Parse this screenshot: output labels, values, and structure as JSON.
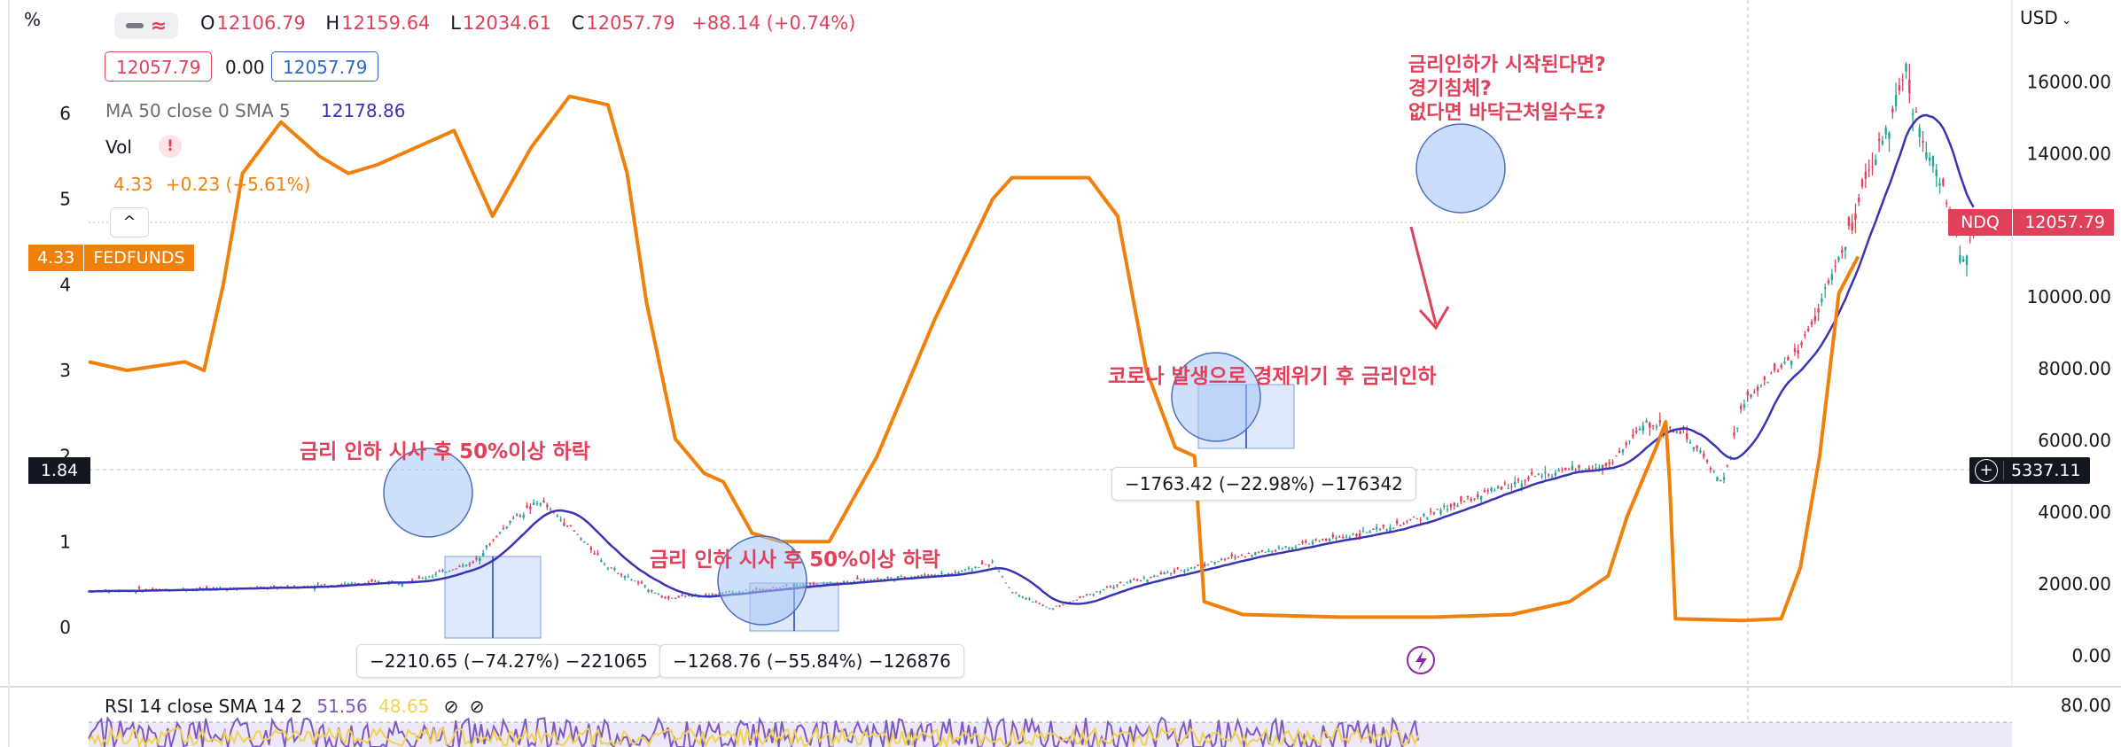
{
  "chart_data": [
    {
      "type": "line",
      "series": [
        {
          "name": "NDQ"
        }
      ],
      "currency_label": "USD",
      "y_right_ticks": [
        "16000.00",
        "14000.00",
        "12000.00",
        "10000.00",
        "8000.00",
        "6000.00",
        "4000.00",
        "2000.00",
        "0.00"
      ],
      "ylim": [
        0,
        16800
      ],
      "last_price_tag": {
        "symbol": "NDQ",
        "value": "12057.79"
      },
      "crosshair_tag": "5337.11",
      "points": [
        [
          0,
          1800
        ],
        [
          0.1,
          1900
        ],
        [
          0.17,
          2100
        ],
        [
          0.2,
          2600
        ],
        [
          0.22,
          3800
        ],
        [
          0.235,
          4300
        ],
        [
          0.25,
          3600
        ],
        [
          0.27,
          2500
        ],
        [
          0.3,
          1600
        ],
        [
          0.34,
          1800
        ],
        [
          0.4,
          2100
        ],
        [
          0.45,
          2300
        ],
        [
          0.47,
          2600
        ],
        [
          0.48,
          1800
        ],
        [
          0.5,
          1300
        ],
        [
          0.53,
          1900
        ],
        [
          0.6,
          2800
        ],
        [
          0.68,
          3600
        ],
        [
          0.75,
          5000
        ],
        [
          0.79,
          5300
        ],
        [
          0.81,
          6500
        ],
        [
          0.83,
          6200
        ],
        [
          0.85,
          4800
        ],
        [
          0.86,
          7000
        ],
        [
          0.89,
          8600
        ],
        [
          0.91,
          11000
        ],
        [
          0.93,
          14000
        ],
        [
          0.945,
          16300
        ],
        [
          0.95,
          15000
        ],
        [
          0.96,
          13600
        ],
        [
          0.97,
          12000
        ],
        [
          0.975,
          11000
        ],
        [
          0.98,
          12100
        ]
      ],
      "ma_line": {
        "label": "MA 50 close 0 SMA 5",
        "value": "12178.86",
        "color": "#3a34b5"
      },
      "ohlc": {
        "o_label": "O",
        "o": "12106.79",
        "h_label": "H",
        "h": "12159.64",
        "l_label": "L",
        "l": "12034.61",
        "c_label": "C",
        "c": "12057.79",
        "change": "+88.14 (+0.74%)"
      },
      "price_boxes": [
        "12057.79",
        "0.00",
        "12057.79"
      ],
      "vol_label": "Vol"
    },
    {
      "type": "line",
      "series": [
        {
          "name": "FEDFUNDS"
        }
      ],
      "unit": "%",
      "y_left_ticks": [
        "6",
        "5",
        "4",
        "3",
        "2",
        "1",
        "0"
      ],
      "ylim": [
        -0.5,
        6.8
      ],
      "color": "#f0800a",
      "tag_value": "4.33",
      "left_crosshair_tag": "1.84",
      "legend": {
        "value": "4.33",
        "change": "+0.23 (+5.61%)"
      },
      "points": [
        [
          0,
          3.1
        ],
        [
          0.02,
          3.0
        ],
        [
          0.05,
          3.1
        ],
        [
          0.06,
          3.0
        ],
        [
          0.07,
          4.0
        ],
        [
          0.08,
          5.3
        ],
        [
          0.1,
          5.9
        ],
        [
          0.12,
          5.5
        ],
        [
          0.135,
          5.3
        ],
        [
          0.15,
          5.4
        ],
        [
          0.17,
          5.6
        ],
        [
          0.19,
          5.8
        ],
        [
          0.2,
          5.3
        ],
        [
          0.21,
          4.8
        ],
        [
          0.23,
          5.6
        ],
        [
          0.25,
          6.2
        ],
        [
          0.27,
          6.1
        ],
        [
          0.28,
          5.3
        ],
        [
          0.29,
          3.8
        ],
        [
          0.305,
          2.2
        ],
        [
          0.32,
          1.8
        ],
        [
          0.33,
          1.7
        ],
        [
          0.345,
          1.1
        ],
        [
          0.36,
          1.0
        ],
        [
          0.385,
          1.0
        ],
        [
          0.41,
          2.0
        ],
        [
          0.44,
          3.6
        ],
        [
          0.47,
          5.0
        ],
        [
          0.48,
          5.25
        ],
        [
          0.52,
          5.25
        ],
        [
          0.535,
          4.8
        ],
        [
          0.55,
          3.0
        ],
        [
          0.565,
          2.1
        ],
        [
          0.575,
          2.0
        ],
        [
          0.58,
          0.3
        ],
        [
          0.6,
          0.15
        ],
        [
          0.65,
          0.12
        ],
        [
          0.7,
          0.12
        ],
        [
          0.74,
          0.15
        ],
        [
          0.77,
          0.3
        ],
        [
          0.79,
          0.6
        ],
        [
          0.8,
          1.3
        ],
        [
          0.815,
          2.1
        ],
        [
          0.82,
          2.4
        ],
        [
          0.822,
          1.7
        ],
        [
          0.825,
          0.1
        ],
        [
          0.86,
          0.08
        ],
        [
          0.88,
          0.1
        ],
        [
          0.89,
          0.7
        ],
        [
          0.9,
          2.0
        ],
        [
          0.91,
          3.9
        ],
        [
          0.92,
          4.33
        ]
      ]
    },
    {
      "type": "line",
      "title": "RSI 14 close SMA 14 2",
      "values_shown": [
        "51.56",
        "48.65"
      ],
      "y_right_ticks": [
        "80.00"
      ],
      "ylim": [
        0,
        100
      ]
    }
  ],
  "ui": {
    "percent_label": "%",
    "fedfunds_tag_label": "FEDFUNDS",
    "ndq_tag_label": "NDQ",
    "eye_icon": "eye-slash-icon",
    "colors": {
      "up": "#26a69a",
      "down": "#e0405a",
      "ma": "#3a34b5",
      "fed": "#f0800a",
      "annotation": "#e0405a",
      "circle_fill": "#a6c5f5",
      "circle_stroke": "#4a6fc0"
    }
  },
  "annotations": {
    "dotcom": "금리 인하 시사 후 50%이상 하락",
    "gfc": "금리 인하 시사 후 50%이상 하락",
    "covid": "코로나 발생으로 경제위기 후 금리인하",
    "future": [
      "금리인하가 시작된다면?",
      "경기침체?",
      "없다면 바닥근처일수도?"
    ]
  },
  "measures": {
    "dotcom": "−2210.65 (−74.27%) −221065",
    "gfc": "−1268.76 (−55.84%) −126876",
    "covid": "−1763.42 (−22.98%) −176342"
  }
}
